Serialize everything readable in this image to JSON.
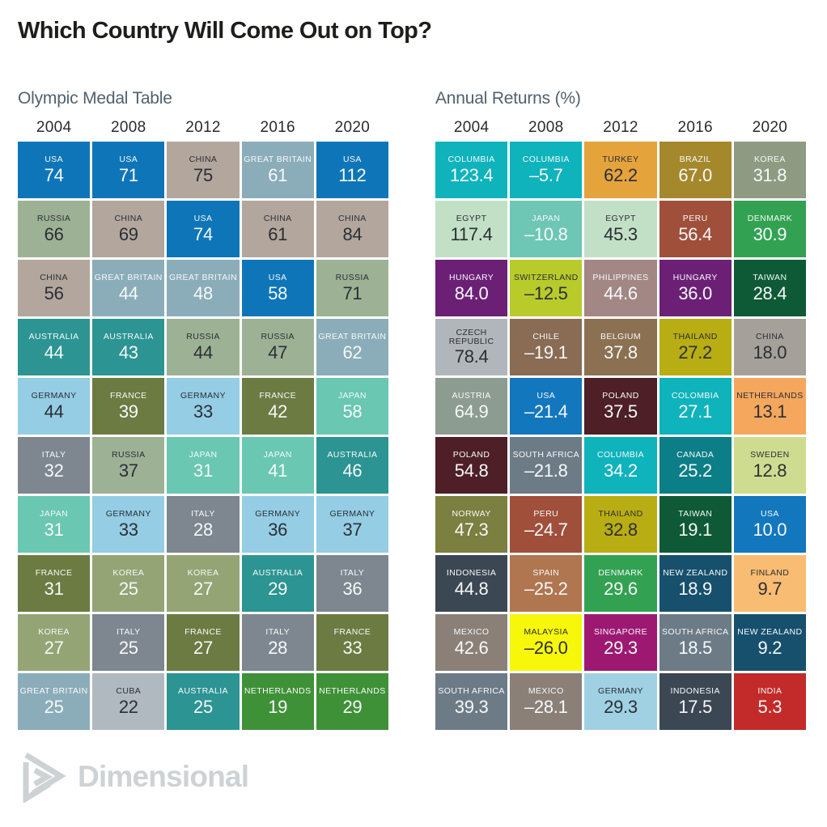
{
  "page": {
    "title": "Which Country Will Come Out on Top?"
  },
  "logo": {
    "text": "Dimensional"
  },
  "colors": {
    "background": "#ffffff",
    "title": "#1d1d1b",
    "subtitle": "#51616e",
    "year_label": "#2b2b2b",
    "tile_gap": "#ffffff",
    "fg": {
      "light": "#f6f9fa",
      "dark": "#2b2e35"
    },
    "logo": "#cdd2d5"
  },
  "chart_data": [
    {
      "type": "table",
      "title": "Olympic Medal Table",
      "columns": [
        "2004",
        "2008",
        "2012",
        "2016",
        "2020"
      ],
      "rows": [
        [
          {
            "c": "USA",
            "v": "74",
            "bg": "#0e76b8",
            "fg": "light"
          },
          {
            "c": "USA",
            "v": "71",
            "bg": "#0e76b8",
            "fg": "light"
          },
          {
            "c": "CHINA",
            "v": "75",
            "bg": "#b2a69d",
            "fg": "dark"
          },
          {
            "c": "GREAT BRITAIN",
            "v": "61",
            "bg": "#8badb9",
            "fg": "light"
          },
          {
            "c": "USA",
            "v": "112",
            "bg": "#0e76b8",
            "fg": "light"
          }
        ],
        [
          {
            "c": "RUSSIA",
            "v": "66",
            "bg": "#9db295",
            "fg": "dark"
          },
          {
            "c": "CHINA",
            "v": "69",
            "bg": "#b2a69d",
            "fg": "dark"
          },
          {
            "c": "USA",
            "v": "74",
            "bg": "#0e76b8",
            "fg": "light"
          },
          {
            "c": "CHINA",
            "v": "61",
            "bg": "#b2a69d",
            "fg": "dark"
          },
          {
            "c": "CHINA",
            "v": "84",
            "bg": "#b2a69d",
            "fg": "dark"
          }
        ],
        [
          {
            "c": "CHINA",
            "v": "56",
            "bg": "#b2a69d",
            "fg": "dark"
          },
          {
            "c": "GREAT BRITAIN",
            "v": "44",
            "bg": "#8badb9",
            "fg": "light"
          },
          {
            "c": "GREAT BRITAIN",
            "v": "48",
            "bg": "#8badb9",
            "fg": "light"
          },
          {
            "c": "USA",
            "v": "58",
            "bg": "#0e76b8",
            "fg": "light"
          },
          {
            "c": "RUSSIA",
            "v": "71",
            "bg": "#9db295",
            "fg": "dark"
          }
        ],
        [
          {
            "c": "AUSTRALIA",
            "v": "44",
            "bg": "#2c9492",
            "fg": "light"
          },
          {
            "c": "AUSTRALIA",
            "v": "43",
            "bg": "#2c9492",
            "fg": "light"
          },
          {
            "c": "RUSSIA",
            "v": "44",
            "bg": "#9db295",
            "fg": "dark"
          },
          {
            "c": "RUSSIA",
            "v": "47",
            "bg": "#9db295",
            "fg": "dark"
          },
          {
            "c": "GREAT BRITAIN",
            "v": "62",
            "bg": "#8badb9",
            "fg": "light"
          }
        ],
        [
          {
            "c": "GERMANY",
            "v": "44",
            "bg": "#94cde4",
            "fg": "dark"
          },
          {
            "c": "FRANCE",
            "v": "39",
            "bg": "#6c7b42",
            "fg": "light"
          },
          {
            "c": "GERMANY",
            "v": "33",
            "bg": "#94cde4",
            "fg": "dark"
          },
          {
            "c": "FRANCE",
            "v": "42",
            "bg": "#6c7b42",
            "fg": "light"
          },
          {
            "c": "JAPAN",
            "v": "58",
            "bg": "#69c7b2",
            "fg": "light"
          }
        ],
        [
          {
            "c": "ITALY",
            "v": "32",
            "bg": "#7e8790",
            "fg": "light"
          },
          {
            "c": "RUSSIA",
            "v": "37",
            "bg": "#9db295",
            "fg": "dark"
          },
          {
            "c": "JAPAN",
            "v": "31",
            "bg": "#69c7b2",
            "fg": "light"
          },
          {
            "c": "JAPAN",
            "v": "41",
            "bg": "#69c7b2",
            "fg": "light"
          },
          {
            "c": "AUSTRALIA",
            "v": "46",
            "bg": "#2c9492",
            "fg": "light"
          }
        ],
        [
          {
            "c": "JAPAN",
            "v": "31",
            "bg": "#69c7b2",
            "fg": "light"
          },
          {
            "c": "GERMANY",
            "v": "33",
            "bg": "#94cde4",
            "fg": "dark"
          },
          {
            "c": "ITALY",
            "v": "28",
            "bg": "#7e8790",
            "fg": "light"
          },
          {
            "c": "GERMANY",
            "v": "36",
            "bg": "#94cde4",
            "fg": "dark"
          },
          {
            "c": "GERMANY",
            "v": "37",
            "bg": "#94cde4",
            "fg": "dark"
          }
        ],
        [
          {
            "c": "FRANCE",
            "v": "31",
            "bg": "#6c7b42",
            "fg": "light"
          },
          {
            "c": "KOREA",
            "v": "25",
            "bg": "#95a474",
            "fg": "light"
          },
          {
            "c": "KOREA",
            "v": "27",
            "bg": "#95a474",
            "fg": "light"
          },
          {
            "c": "AUSTRALIA",
            "v": "29",
            "bg": "#2c9492",
            "fg": "light"
          },
          {
            "c": "ITALY",
            "v": "36",
            "bg": "#7e8790",
            "fg": "light"
          }
        ],
        [
          {
            "c": "KOREA",
            "v": "27",
            "bg": "#95a474",
            "fg": "light"
          },
          {
            "c": "ITALY",
            "v": "25",
            "bg": "#7e8790",
            "fg": "light"
          },
          {
            "c": "FRANCE",
            "v": "27",
            "bg": "#6c7b42",
            "fg": "light"
          },
          {
            "c": "ITALY",
            "v": "28",
            "bg": "#7e8790",
            "fg": "light"
          },
          {
            "c": "FRANCE",
            "v": "33",
            "bg": "#6c7b42",
            "fg": "light"
          }
        ],
        [
          {
            "c": "GREAT BRITAIN",
            "v": "25",
            "bg": "#8badb9",
            "fg": "light"
          },
          {
            "c": "CUBA",
            "v": "22",
            "bg": "#b1b9c0",
            "fg": "dark"
          },
          {
            "c": "AUSTRALIA",
            "v": "25",
            "bg": "#2c9492",
            "fg": "light"
          },
          {
            "c": "NETHERLANDS",
            "v": "19",
            "bg": "#3f9137",
            "fg": "light"
          },
          {
            "c": "NETHERLANDS",
            "v": "29",
            "bg": "#3f9137",
            "fg": "light"
          }
        ]
      ]
    },
    {
      "type": "table",
      "title": "Annual Returns (%)",
      "columns": [
        "2004",
        "2008",
        "2012",
        "2016",
        "2020"
      ],
      "rows": [
        [
          {
            "c": "COLUMBIA",
            "v": "123.4",
            "bg": "#0fb3bc",
            "fg": "light"
          },
          {
            "c": "COLUMBIA",
            "v": "–5.7",
            "bg": "#0fb3bc",
            "fg": "light"
          },
          {
            "c": "TURKEY",
            "v": "62.2",
            "bg": "#e5a33c",
            "fg": "dark"
          },
          {
            "c": "BRAZIL",
            "v": "67.0",
            "bg": "#a5882b",
            "fg": "light"
          },
          {
            "c": "KOREA",
            "v": "31.8",
            "bg": "#8e9b82",
            "fg": "light"
          }
        ],
        [
          {
            "c": "EGYPT",
            "v": "117.4",
            "bg": "#c2e0c6",
            "fg": "dark"
          },
          {
            "c": "JAPAN",
            "v": "–10.8",
            "bg": "#6ec6b4",
            "fg": "light"
          },
          {
            "c": "EGYPT",
            "v": "45.3",
            "bg": "#c2e0c6",
            "fg": "dark"
          },
          {
            "c": "PERU",
            "v": "56.4",
            "bg": "#a04f3a",
            "fg": "light"
          },
          {
            "c": "DENMARK",
            "v": "30.9",
            "bg": "#32a252",
            "fg": "light"
          }
        ],
        [
          {
            "c": "HUNGARY",
            "v": "84.0",
            "bg": "#6b2076",
            "fg": "light"
          },
          {
            "c": "SWITZERLAND",
            "v": "–12.5",
            "bg": "#b9cb2b",
            "fg": "dark"
          },
          {
            "c": "PHILIPPINES",
            "v": "44.6",
            "bg": "#a28785",
            "fg": "light"
          },
          {
            "c": "HUNGARY",
            "v": "36.0",
            "bg": "#6b2076",
            "fg": "light"
          },
          {
            "c": "TAIWAN",
            "v": "28.4",
            "bg": "#0e5a36",
            "fg": "light"
          }
        ],
        [
          {
            "c": "CZECH REPUBLIC",
            "v": "78.4",
            "bg": "#b1b6bb",
            "fg": "dark"
          },
          {
            "c": "CHILE",
            "v": "–19.1",
            "bg": "#8a6b53",
            "fg": "light"
          },
          {
            "c": "BELGIUM",
            "v": "37.8",
            "bg": "#8c7052",
            "fg": "light"
          },
          {
            "c": "THAILAND",
            "v": "27.2",
            "bg": "#b8ad12",
            "fg": "dark"
          },
          {
            "c": "CHINA",
            "v": "18.0",
            "bg": "#a5a09a",
            "fg": "dark"
          }
        ],
        [
          {
            "c": "AUSTRIA",
            "v": "64.9",
            "bg": "#8d9c90",
            "fg": "light"
          },
          {
            "c": "USA",
            "v": "–21.4",
            "bg": "#1377bd",
            "fg": "light"
          },
          {
            "c": "POLAND",
            "v": "37.5",
            "bg": "#4e1f26",
            "fg": "light"
          },
          {
            "c": "COLOMBIA",
            "v": "27.1",
            "bg": "#0fb3bc",
            "fg": "light"
          },
          {
            "c": "NETHERLANDS",
            "v": "13.1",
            "bg": "#f4a75d",
            "fg": "dark"
          }
        ],
        [
          {
            "c": "POLAND",
            "v": "54.8",
            "bg": "#4e1f26",
            "fg": "light"
          },
          {
            "c": "SOUTH AFRICA",
            "v": "–21.8",
            "bg": "#6d7b87",
            "fg": "light"
          },
          {
            "c": "COLUMBIA",
            "v": "34.2",
            "bg": "#0fb3bc",
            "fg": "light"
          },
          {
            "c": "CANADA",
            "v": "25.2",
            "bg": "#0b7e87",
            "fg": "light"
          },
          {
            "c": "SWEDEN",
            "v": "12.8",
            "bg": "#cedc90",
            "fg": "dark"
          }
        ],
        [
          {
            "c": "NORWAY",
            "v": "47.3",
            "bg": "#7b7f3f",
            "fg": "light"
          },
          {
            "c": "PERU",
            "v": "–24.7",
            "bg": "#a04f3a",
            "fg": "light"
          },
          {
            "c": "THAILAND",
            "v": "32.8",
            "bg": "#b8ad12",
            "fg": "dark"
          },
          {
            "c": "TAIWAN",
            "v": "19.1",
            "bg": "#0e5a36",
            "fg": "light"
          },
          {
            "c": "USA",
            "v": "10.0",
            "bg": "#1377bd",
            "fg": "light"
          }
        ],
        [
          {
            "c": "INDONESIA",
            "v": "44.8",
            "bg": "#3c4754",
            "fg": "light"
          },
          {
            "c": "SPAIN",
            "v": "–25.2",
            "bg": "#b0764f",
            "fg": "light"
          },
          {
            "c": "DENMARK",
            "v": "29.6",
            "bg": "#32a252",
            "fg": "light"
          },
          {
            "c": "NEW ZEALAND",
            "v": "18.9",
            "bg": "#17506d",
            "fg": "light"
          },
          {
            "c": "FINLAND",
            "v": "9.7",
            "bg": "#f8bc72",
            "fg": "dark"
          }
        ],
        [
          {
            "c": "MEXICO",
            "v": "42.6",
            "bg": "#8a8078",
            "fg": "light"
          },
          {
            "c": "MALAYSIA",
            "v": "–26.0",
            "bg": "#f7f70b",
            "fg": "dark"
          },
          {
            "c": "SINGAPORE",
            "v": "29.3",
            "bg": "#9d1971",
            "fg": "light"
          },
          {
            "c": "SOUTH AFRICA",
            "v": "18.5",
            "bg": "#6d7b87",
            "fg": "light"
          },
          {
            "c": "NEW ZEALAND",
            "v": "9.2",
            "bg": "#17506d",
            "fg": "light"
          }
        ],
        [
          {
            "c": "SOUTH AFRICA",
            "v": "39.3",
            "bg": "#6d7b87",
            "fg": "light"
          },
          {
            "c": "MEXICO",
            "v": "–28.1",
            "bg": "#8a8078",
            "fg": "light"
          },
          {
            "c": "GERMANY",
            "v": "29.3",
            "bg": "#9fd1e3",
            "fg": "dark"
          },
          {
            "c": "INDONESIA",
            "v": "17.5",
            "bg": "#3c4754",
            "fg": "light"
          },
          {
            "c": "INDIA",
            "v": "5.3",
            "bg": "#c32a2a",
            "fg": "light"
          }
        ]
      ]
    }
  ]
}
